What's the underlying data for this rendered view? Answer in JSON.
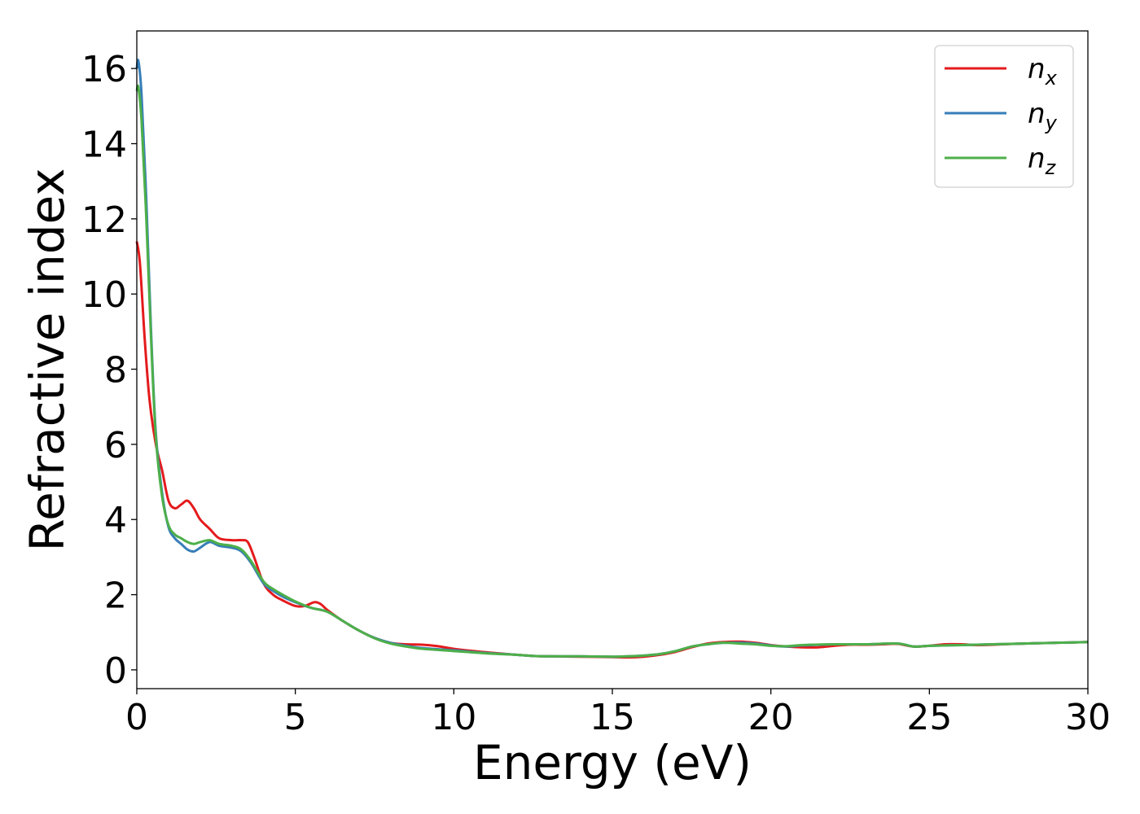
{
  "chart_data": {
    "type": "line",
    "title": "",
    "xlabel": "Energy (eV)",
    "ylabel": "Refractive index",
    "xlim": [
      0,
      30
    ],
    "ylim": [
      -0.5,
      17
    ],
    "xticks": [
      0,
      5,
      10,
      15,
      20,
      25,
      30
    ],
    "yticks": [
      0,
      2,
      4,
      6,
      8,
      10,
      12,
      14,
      16
    ],
    "grid": false,
    "legend_position": "top-right",
    "series": [
      {
        "name": "n",
        "name_sub": "x",
        "color": "#e41a1c",
        "x": [
          0,
          0.1,
          0.25,
          0.4,
          0.6,
          0.8,
          1.0,
          1.2,
          1.4,
          1.6,
          1.8,
          2.0,
          2.3,
          2.6,
          3.0,
          3.3,
          3.5,
          3.7,
          4.0,
          4.3,
          4.6,
          5.0,
          5.3,
          5.6,
          5.8,
          6.0,
          6.5,
          7.0,
          7.5,
          8.0,
          8.5,
          9.0,
          9.5,
          10.0,
          11.0,
          12.0,
          12.5,
          13.0,
          14.0,
          15.0,
          15.5,
          16.0,
          16.5,
          17.0,
          17.5,
          18.0,
          18.5,
          19.0,
          19.5,
          20.0,
          20.5,
          21.0,
          21.5,
          22.0,
          22.5,
          23.0,
          23.5,
          24.0,
          24.5,
          25.0,
          25.5,
          26.0,
          26.5,
          27.0,
          28.0,
          29.0,
          30.0
        ],
        "values": [
          11.4,
          10.8,
          8.8,
          7.2,
          6.0,
          5.3,
          4.5,
          4.3,
          4.4,
          4.5,
          4.3,
          4.0,
          3.75,
          3.5,
          3.45,
          3.45,
          3.4,
          3.0,
          2.3,
          2.0,
          1.85,
          1.7,
          1.7,
          1.8,
          1.75,
          1.6,
          1.3,
          1.05,
          0.85,
          0.72,
          0.68,
          0.67,
          0.63,
          0.56,
          0.47,
          0.4,
          0.37,
          0.36,
          0.35,
          0.34,
          0.33,
          0.35,
          0.4,
          0.48,
          0.6,
          0.7,
          0.74,
          0.75,
          0.72,
          0.66,
          0.62,
          0.6,
          0.6,
          0.64,
          0.67,
          0.67,
          0.68,
          0.69,
          0.62,
          0.64,
          0.68,
          0.68,
          0.66,
          0.67,
          0.7,
          0.72,
          0.74
        ]
      },
      {
        "name": "n",
        "name_sub": "y",
        "color": "#377eb8",
        "x": [
          0,
          0.05,
          0.15,
          0.3,
          0.45,
          0.6,
          0.8,
          1.0,
          1.2,
          1.4,
          1.6,
          1.8,
          2.0,
          2.3,
          2.6,
          3.0,
          3.3,
          3.6,
          4.0,
          4.3,
          4.6,
          5.0,
          5.5,
          6.0,
          6.5,
          7.0,
          7.5,
          8.0,
          8.5,
          9.0,
          10.0,
          11.0,
          12.0,
          12.5,
          13.0,
          14.0,
          15.0,
          15.5,
          16.0,
          16.5,
          17.0,
          17.5,
          18.0,
          18.5,
          19.0,
          19.5,
          20.0,
          20.5,
          21.0,
          22.0,
          23.0,
          24.0,
          24.5,
          25.0,
          26.0,
          27.0,
          28.0,
          29.0,
          30.0
        ],
        "values": [
          16.0,
          16.2,
          15.3,
          12.5,
          9.0,
          6.3,
          4.7,
          3.8,
          3.5,
          3.35,
          3.2,
          3.15,
          3.25,
          3.4,
          3.3,
          3.25,
          3.15,
          2.85,
          2.3,
          2.1,
          1.95,
          1.8,
          1.65,
          1.55,
          1.3,
          1.05,
          0.85,
          0.72,
          0.64,
          0.58,
          0.52,
          0.45,
          0.4,
          0.37,
          0.36,
          0.36,
          0.35,
          0.36,
          0.38,
          0.42,
          0.5,
          0.62,
          0.68,
          0.72,
          0.72,
          0.7,
          0.65,
          0.62,
          0.65,
          0.68,
          0.68,
          0.7,
          0.62,
          0.64,
          0.66,
          0.68,
          0.7,
          0.72,
          0.74
        ]
      },
      {
        "name": "n",
        "name_sub": "z",
        "color": "#4daf4a",
        "x": [
          0,
          0.05,
          0.15,
          0.3,
          0.45,
          0.6,
          0.8,
          1.0,
          1.2,
          1.4,
          1.6,
          1.8,
          2.0,
          2.3,
          2.6,
          3.0,
          3.3,
          3.6,
          4.0,
          4.3,
          4.6,
          5.0,
          5.5,
          6.0,
          6.5,
          7.0,
          7.5,
          8.0,
          8.5,
          9.0,
          10.0,
          11.0,
          12.0,
          12.5,
          13.0,
          14.0,
          15.0,
          15.5,
          16.0,
          16.5,
          17.0,
          17.5,
          18.0,
          18.5,
          19.0,
          19.5,
          20.0,
          20.5,
          21.0,
          22.0,
          23.0,
          24.0,
          24.5,
          25.0,
          26.0,
          27.0,
          28.0,
          29.0,
          30.0
        ],
        "values": [
          15.4,
          15.5,
          14.6,
          12.0,
          8.8,
          6.2,
          4.6,
          3.85,
          3.6,
          3.5,
          3.4,
          3.35,
          3.4,
          3.45,
          3.35,
          3.3,
          3.2,
          2.9,
          2.35,
          2.15,
          2.0,
          1.82,
          1.65,
          1.55,
          1.3,
          1.05,
          0.84,
          0.7,
          0.62,
          0.56,
          0.5,
          0.44,
          0.4,
          0.37,
          0.36,
          0.36,
          0.35,
          0.36,
          0.38,
          0.42,
          0.5,
          0.62,
          0.68,
          0.72,
          0.7,
          0.68,
          0.64,
          0.63,
          0.66,
          0.68,
          0.68,
          0.7,
          0.62,
          0.64,
          0.66,
          0.68,
          0.7,
          0.72,
          0.74
        ]
      }
    ]
  }
}
